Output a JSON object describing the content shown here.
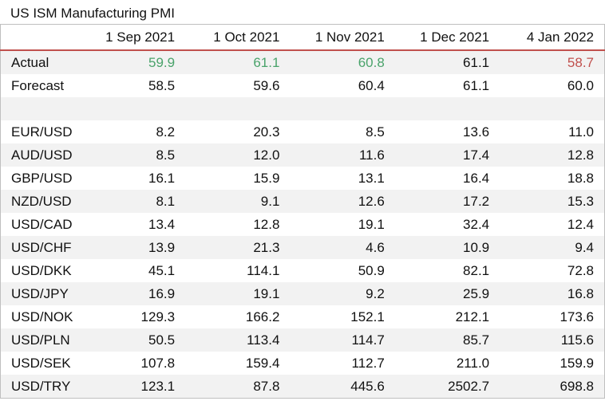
{
  "title": "US ISM Manufacturing PMI",
  "columns": [
    "1 Sep 2021",
    "1 Oct 2021",
    "1 Nov 2021",
    "1 Dec 2021",
    "4 Jan 2022"
  ],
  "colors": {
    "beat": "#4aa36b",
    "miss": "#c0504d",
    "header_rule": "#c0504d"
  },
  "actual": {
    "label": "Actual",
    "values": [
      "59.9",
      "61.1",
      "60.8",
      "61.1",
      "58.7"
    ],
    "status": [
      "beat",
      "beat",
      "beat",
      "inline",
      "miss"
    ]
  },
  "forecast": {
    "label": "Forecast",
    "values": [
      "58.5",
      "59.6",
      "60.4",
      "61.1",
      "60.0"
    ]
  },
  "pairs": [
    {
      "label": "EUR/USD",
      "values": [
        "8.2",
        "20.3",
        "8.5",
        "13.6",
        "11.0"
      ]
    },
    {
      "label": "AUD/USD",
      "values": [
        "8.5",
        "12.0",
        "11.6",
        "17.4",
        "12.8"
      ]
    },
    {
      "label": "GBP/USD",
      "values": [
        "16.1",
        "15.9",
        "13.1",
        "16.4",
        "18.8"
      ]
    },
    {
      "label": "NZD/USD",
      "values": [
        "8.1",
        "9.1",
        "12.6",
        "17.2",
        "15.3"
      ]
    },
    {
      "label": "USD/CAD",
      "values": [
        "13.4",
        "12.8",
        "19.1",
        "32.4",
        "12.4"
      ]
    },
    {
      "label": "USD/CHF",
      "values": [
        "13.9",
        "21.3",
        "4.6",
        "10.9",
        "9.4"
      ]
    },
    {
      "label": "USD/DKK",
      "values": [
        "45.1",
        "114.1",
        "50.9",
        "82.1",
        "72.8"
      ]
    },
    {
      "label": "USD/JPY",
      "values": [
        "16.9",
        "19.1",
        "9.2",
        "25.9",
        "16.8"
      ]
    },
    {
      "label": "USD/NOK",
      "values": [
        "129.3",
        "166.2",
        "152.1",
        "212.1",
        "173.6"
      ]
    },
    {
      "label": "USD/PLN",
      "values": [
        "50.5",
        "113.4",
        "114.7",
        "85.7",
        "115.6"
      ]
    },
    {
      "label": "USD/SEK",
      "values": [
        "107.8",
        "159.4",
        "112.7",
        "211.0",
        "159.9"
      ]
    },
    {
      "label": "USD/TRY",
      "values": [
        "123.1",
        "87.8",
        "445.6",
        "2502.7",
        "698.8"
      ]
    }
  ]
}
